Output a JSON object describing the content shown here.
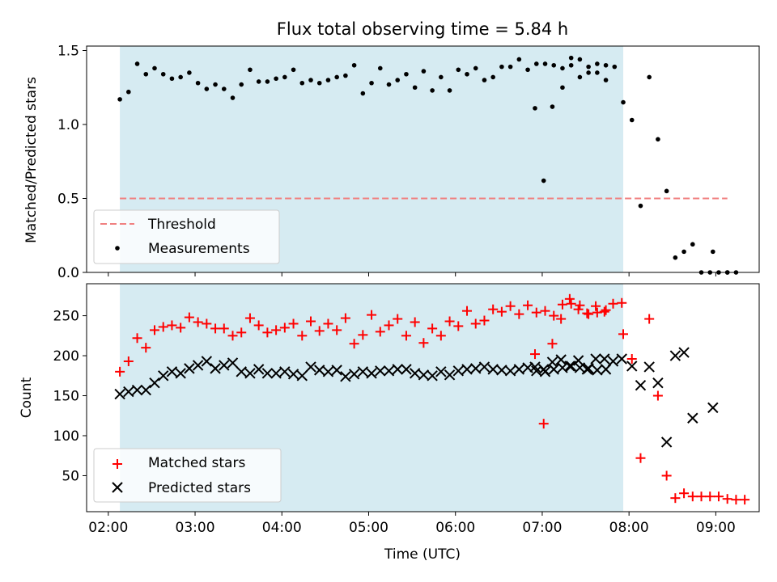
{
  "chart_data": [
    {
      "type": "scatter",
      "title": "Flux total observing time = 5.84 h",
      "xlabel": "",
      "ylabel": "Matched/Predicted stars",
      "xlim": [
        "01:45",
        "09:30"
      ],
      "ylim": [
        0,
        1.53
      ],
      "yticks": [
        "0.0",
        "0.5",
        "1.0",
        "1.5"
      ],
      "shaded_span": [
        "02:08",
        "07:56"
      ],
      "threshold": {
        "name": "Threshold",
        "value": 0.5,
        "x_range": [
          "02:08",
          "09:08"
        ],
        "color": "#f08080"
      },
      "legend": {
        "position": "lower-left",
        "entries": [
          "Threshold",
          "Measurements"
        ]
      },
      "series": [
        {
          "name": "Measurements",
          "color": "#000000",
          "marker": "dot",
          "points": [
            [
              "02:08",
              1.17
            ],
            [
              "02:14",
              1.22
            ],
            [
              "02:20",
              1.41
            ],
            [
              "02:26",
              1.34
            ],
            [
              "02:32",
              1.38
            ],
            [
              "02:38",
              1.34
            ],
            [
              "02:44",
              1.31
            ],
            [
              "02:50",
              1.32
            ],
            [
              "02:56",
              1.35
            ],
            [
              "03:02",
              1.28
            ],
            [
              "03:08",
              1.24
            ],
            [
              "03:14",
              1.27
            ],
            [
              "03:20",
              1.24
            ],
            [
              "03:26",
              1.18
            ],
            [
              "03:32",
              1.27
            ],
            [
              "03:38",
              1.37
            ],
            [
              "03:44",
              1.29
            ],
            [
              "03:50",
              1.29
            ],
            [
              "03:56",
              1.31
            ],
            [
              "04:02",
              1.32
            ],
            [
              "04:08",
              1.37
            ],
            [
              "04:14",
              1.28
            ],
            [
              "04:20",
              1.3
            ],
            [
              "04:26",
              1.28
            ],
            [
              "04:32",
              1.3
            ],
            [
              "04:38",
              1.32
            ],
            [
              "04:44",
              1.33
            ],
            [
              "04:50",
              1.4
            ],
            [
              "04:56",
              1.21
            ],
            [
              "05:02",
              1.28
            ],
            [
              "05:08",
              1.38
            ],
            [
              "05:14",
              1.27
            ],
            [
              "05:20",
              1.3
            ],
            [
              "05:26",
              1.34
            ],
            [
              "05:32",
              1.25
            ],
            [
              "05:38",
              1.36
            ],
            [
              "05:44",
              1.23
            ],
            [
              "05:50",
              1.32
            ],
            [
              "05:56",
              1.23
            ],
            [
              "06:02",
              1.37
            ],
            [
              "06:08",
              1.34
            ],
            [
              "06:14",
              1.38
            ],
            [
              "06:20",
              1.3
            ],
            [
              "06:26",
              1.32
            ],
            [
              "06:32",
              1.39
            ],
            [
              "06:38",
              1.39
            ],
            [
              "06:44",
              1.44
            ],
            [
              "06:50",
              1.37
            ],
            [
              "06:56",
              1.41
            ],
            [
              "07:02",
              1.41
            ],
            [
              "07:08",
              1.4
            ],
            [
              "07:14",
              1.38
            ],
            [
              "07:20",
              1.4
            ],
            [
              "07:26",
              1.44
            ],
            [
              "07:32",
              1.35
            ],
            [
              "07:38",
              1.41
            ],
            [
              "07:44",
              1.4
            ],
            [
              "06:55",
              1.11
            ],
            [
              "07:01",
              0.62
            ],
            [
              "07:07",
              1.12
            ],
            [
              "07:14",
              1.25
            ],
            [
              "07:20",
              1.45
            ],
            [
              "07:26",
              1.32
            ],
            [
              "07:32",
              1.39
            ],
            [
              "07:38",
              1.35
            ],
            [
              "07:44",
              1.3
            ],
            [
              "07:50",
              1.39
            ],
            [
              "07:56",
              1.15
            ],
            [
              "08:02",
              1.03
            ],
            [
              "08:08",
              0.45
            ],
            [
              "08:14",
              1.32
            ],
            [
              "08:20",
              0.9
            ],
            [
              "08:26",
              0.55
            ],
            [
              "08:32",
              0.1
            ],
            [
              "08:38",
              0.14
            ],
            [
              "08:44",
              0.19
            ],
            [
              "08:50",
              0.0
            ],
            [
              "08:56",
              0.0
            ],
            [
              "09:02",
              0.0
            ],
            [
              "09:08",
              0.0
            ],
            [
              "08:58",
              0.14
            ],
            [
              "09:08",
              0.0
            ],
            [
              "09:14",
              0.0
            ]
          ]
        }
      ]
    },
    {
      "type": "scatter",
      "title": "",
      "xlabel": "Time (UTC)",
      "ylabel": "Count",
      "xlim": [
        "01:45",
        "09:30"
      ],
      "ylim": [
        5,
        290
      ],
      "yticks": [
        "50",
        "100",
        "150",
        "200",
        "250"
      ],
      "xticks": [
        "02:00",
        "03:00",
        "04:00",
        "05:00",
        "06:00",
        "07:00",
        "08:00",
        "09:00"
      ],
      "shaded_span": [
        "02:08",
        "07:56"
      ],
      "legend": {
        "position": "lower-left",
        "entries": [
          "Matched stars",
          "Predicted stars"
        ]
      },
      "series": [
        {
          "name": "Matched stars",
          "color": "#ff0000",
          "marker": "plus",
          "points": [
            [
              "02:08",
              180
            ],
            [
              "02:14",
              193
            ],
            [
              "02:20",
              222
            ],
            [
              "02:26",
              210
            ],
            [
              "02:32",
              232
            ],
            [
              "02:38",
              236
            ],
            [
              "02:44",
              238
            ],
            [
              "02:50",
              235
            ],
            [
              "02:56",
              248
            ],
            [
              "03:02",
              242
            ],
            [
              "03:08",
              240
            ],
            [
              "03:14",
              234
            ],
            [
              "03:20",
              234
            ],
            [
              "03:26",
              225
            ],
            [
              "03:32",
              229
            ],
            [
              "03:38",
              247
            ],
            [
              "03:44",
              238
            ],
            [
              "03:50",
              229
            ],
            [
              "03:56",
              232
            ],
            [
              "04:02",
              235
            ],
            [
              "04:08",
              240
            ],
            [
              "04:14",
              225
            ],
            [
              "04:20",
              243
            ],
            [
              "04:26",
              231
            ],
            [
              "04:32",
              240
            ],
            [
              "04:38",
              232
            ],
            [
              "04:44",
              247
            ],
            [
              "04:50",
              215
            ],
            [
              "04:56",
              226
            ],
            [
              "05:02",
              251
            ],
            [
              "05:08",
              230
            ],
            [
              "05:14",
              238
            ],
            [
              "05:20",
              246
            ],
            [
              "05:26",
              225
            ],
            [
              "05:32",
              242
            ],
            [
              "05:38",
              216
            ],
            [
              "05:44",
              234
            ],
            [
              "05:50",
              225
            ],
            [
              "05:56",
              243
            ],
            [
              "06:02",
              237
            ],
            [
              "06:08",
              256
            ],
            [
              "06:14",
              240
            ],
            [
              "06:20",
              244
            ],
            [
              "06:26",
              258
            ],
            [
              "06:32",
              255
            ],
            [
              "06:38",
              262
            ],
            [
              "06:44",
              252
            ],
            [
              "06:50",
              263
            ],
            [
              "06:56",
              254
            ],
            [
              "07:02",
              256
            ],
            [
              "07:08",
              250
            ],
            [
              "07:14",
              264
            ],
            [
              "07:20",
              265
            ],
            [
              "07:26",
              263
            ],
            [
              "07:32",
              252
            ],
            [
              "07:38",
              254
            ],
            [
              "07:44",
              257
            ],
            [
              "06:55",
              202
            ],
            [
              "07:01",
              115
            ],
            [
              "07:07",
              215
            ],
            [
              "07:13",
              246
            ],
            [
              "07:19",
              271
            ],
            [
              "07:25",
              258
            ],
            [
              "07:31",
              253
            ],
            [
              "07:37",
              262
            ],
            [
              "07:43",
              255
            ],
            [
              "07:49",
              265
            ],
            [
              "07:55",
              266
            ],
            [
              "07:56",
              227
            ],
            [
              "08:02",
              196
            ],
            [
              "08:08",
              72
            ],
            [
              "08:14",
              246
            ],
            [
              "08:20",
              150
            ],
            [
              "08:26",
              50
            ],
            [
              "08:32",
              22
            ],
            [
              "08:38",
              28
            ],
            [
              "08:44",
              24
            ],
            [
              "08:50",
              24
            ],
            [
              "08:56",
              24
            ],
            [
              "09:02",
              24
            ],
            [
              "09:08",
              21
            ],
            [
              "09:14",
              20
            ],
            [
              "09:20",
              20
            ]
          ]
        },
        {
          "name": "Predicted stars",
          "color": "#000000",
          "marker": "x",
          "points": [
            [
              "02:08",
              152
            ],
            [
              "02:14",
              155
            ],
            [
              "02:20",
              157
            ],
            [
              "02:26",
              157
            ],
            [
              "02:32",
              166
            ],
            [
              "02:38",
              175
            ],
            [
              "02:44",
              180
            ],
            [
              "02:50",
              178
            ],
            [
              "02:56",
              184
            ],
            [
              "03:02",
              188
            ],
            [
              "03:08",
              193
            ],
            [
              "03:14",
              184
            ],
            [
              "03:20",
              188
            ],
            [
              "03:26",
              191
            ],
            [
              "03:32",
              180
            ],
            [
              "03:38",
              178
            ],
            [
              "03:44",
              183
            ],
            [
              "03:50",
              178
            ],
            [
              "03:56",
              178
            ],
            [
              "04:02",
              180
            ],
            [
              "04:08",
              177
            ],
            [
              "04:14",
              175
            ],
            [
              "04:20",
              186
            ],
            [
              "04:26",
              182
            ],
            [
              "04:32",
              180
            ],
            [
              "04:38",
              182
            ],
            [
              "04:44",
              174
            ],
            [
              "04:50",
              177
            ],
            [
              "04:56",
              180
            ],
            [
              "05:02",
              178
            ],
            [
              "05:08",
              181
            ],
            [
              "05:14",
              181
            ],
            [
              "05:20",
              183
            ],
            [
              "05:26",
              183
            ],
            [
              "05:32",
              178
            ],
            [
              "05:38",
              176
            ],
            [
              "05:44",
              175
            ],
            [
              "05:50",
              180
            ],
            [
              "05:56",
              176
            ],
            [
              "06:02",
              181
            ],
            [
              "06:08",
              183
            ],
            [
              "06:14",
              184
            ],
            [
              "06:20",
              186
            ],
            [
              "06:26",
              183
            ],
            [
              "06:32",
              182
            ],
            [
              "06:38",
              181
            ],
            [
              "06:44",
              183
            ],
            [
              "06:50",
              185
            ],
            [
              "06:56",
              181
            ],
            [
              "07:02",
              180
            ],
            [
              "07:08",
              183
            ],
            [
              "07:14",
              185
            ],
            [
              "07:20",
              187
            ],
            [
              "07:26",
              185
            ],
            [
              "07:32",
              184
            ],
            [
              "07:38",
              182
            ],
            [
              "07:44",
              183
            ],
            [
              "06:55",
              186
            ],
            [
              "07:01",
              183
            ],
            [
              "07:07",
              192
            ],
            [
              "07:13",
              195
            ],
            [
              "07:19",
              187
            ],
            [
              "07:25",
              194
            ],
            [
              "07:31",
              183
            ],
            [
              "07:37",
              196
            ],
            [
              "07:43",
              196
            ],
            [
              "07:49",
              193
            ],
            [
              "07:55",
              196
            ],
            [
              "08:02",
              187
            ],
            [
              "08:08",
              163
            ],
            [
              "08:14",
              186
            ],
            [
              "08:20",
              166
            ],
            [
              "08:26",
              92
            ],
            [
              "08:32",
              200
            ],
            [
              "08:38",
              204
            ],
            [
              "08:44",
              122
            ],
            [
              "08:58",
              135
            ]
          ]
        }
      ]
    }
  ]
}
